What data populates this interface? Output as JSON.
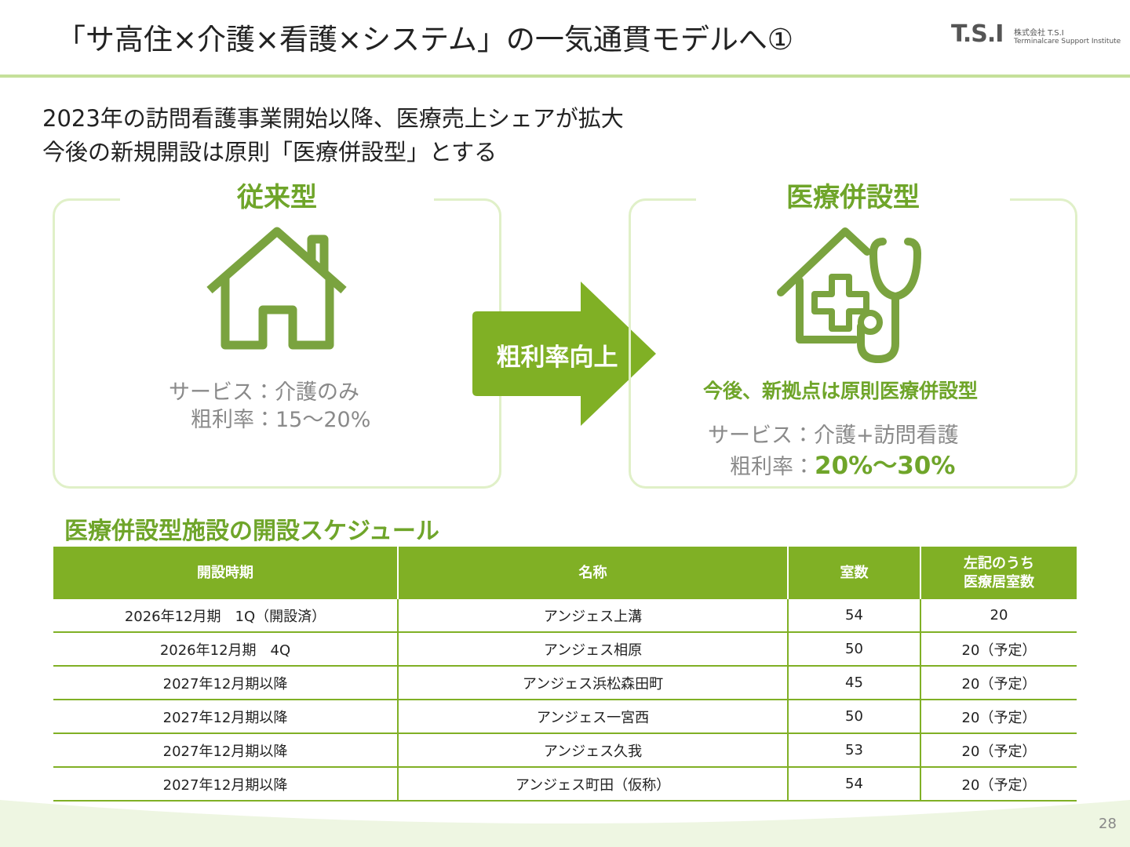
{
  "header": {
    "title": "「サ高住×介護×看護×システム」の一気通貫モデルへ①",
    "logo_mark": "T.S.I",
    "logo_company": "株式会社 T.S.I",
    "logo_tagline": "Terminalcare Support Institute"
  },
  "subtitle": [
    "2023年の訪問看護事業開始以降、医療売上シェアが拡大",
    "今後の新規開設は原則「医療併設型」とする"
  ],
  "left_panel": {
    "title": "従来型",
    "service_label": "サービス：",
    "service": "介護のみ",
    "margin_label": "粗利率：",
    "margin": "15〜20%"
  },
  "arrow": {
    "label": "粗利率向上"
  },
  "right_panel": {
    "title": "医療併設型",
    "headline": "今後、新拠点は原則医療併設型",
    "service_label": "サービス：",
    "service": "介護+訪問看護",
    "margin_label": "粗利率：",
    "margin": "20%〜30%"
  },
  "schedule": {
    "title": "医療併設型施設の開設スケジュール",
    "columns": [
      [
        "開設時期"
      ],
      [
        "名称"
      ],
      [
        "室数"
      ],
      [
        "左記のうち",
        "医療居室数"
      ]
    ],
    "rows": [
      [
        "2026年12月期　1Q（開設済）",
        "アンジェス上溝",
        "54",
        "20"
      ],
      [
        "2026年12月期　4Q",
        "アンジェス相原",
        "50",
        "20（予定）"
      ],
      [
        "2027年12月期以降",
        "アンジェス浜松森田町",
        "45",
        "20（予定）"
      ],
      [
        "2027年12月期以降",
        "アンジェス一宮西",
        "50",
        "20（予定）"
      ],
      [
        "2027年12月期以降",
        "アンジェス久我",
        "53",
        "20（予定）"
      ],
      [
        "2027年12月期以降",
        "アンジェス町田（仮称）",
        "54",
        "20（予定）"
      ]
    ]
  },
  "page_number": "28"
}
